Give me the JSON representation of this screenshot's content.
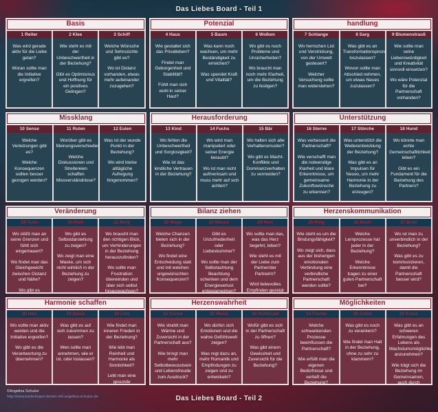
{
  "page": {
    "title_top": "Das Liebes Board - Teil 1",
    "title_bottom": "Das Liebes Board - Teil 2",
    "credit": "©Angelina Schulze",
    "credit_url": "http://www.kartenlegen-lernen-mit-angelina-schulze.de"
  },
  "colors": {
    "accent_red": "#8c2234",
    "section_header_bg": "#f4efee",
    "card_header_top_half": "#5e2230",
    "card_header_bottom_half": "#14384f",
    "card_body_top_half": "#0d2e3f",
    "card_body_bottom_half": "#601c2c",
    "text_light": "#f5f2ef",
    "url_blue": "#6f9fd8"
  },
  "bands": [
    {
      "theme": "blue",
      "sections": [
        {
          "title": "Basis",
          "cards": [
            {
              "title": "1 Reiter",
              "paragraphs": [
                "Was wird gerade aktiv für die Liebe getan?",
                "Woran sollte man die Initiative ergreifen?"
              ]
            },
            {
              "title": "2 Klee",
              "paragraphs": [
                "Wie steht es mit der Unbeschwertheit in der Beziehung?",
                "Gibt es Optimismus und Hoffnung für ein positives Gelingen?"
              ]
            },
            {
              "title": "3 Schiff",
              "paragraphs": [
                "Welche Wünsche und Sehnsüchte gibt es?",
                "Wo ist Distanz vorhanden, etwas mehr aufeinander zuzugehen?"
              ]
            }
          ]
        },
        {
          "title": "Potenzial",
          "cards": [
            {
              "title": "4 Haus",
              "paragraphs": [
                "Wie gestaltet sich das Privatleben?",
                "Findet man Geborgenheit und Stabilität?",
                "Fühlt man sich wohl in seiner Haut?"
              ]
            },
            {
              "title": "5 Baum",
              "paragraphs": [
                "Was kann noch wachsen, um mehr Beständigkeit zu erreichen?",
                "Was spendet Kraft und Vitalität?"
              ]
            },
            {
              "title": "6 Wolken",
              "paragraphs": [
                "Wo gibt es noch Probleme und Unsicherheiten?",
                "Wo braucht man noch mehr Klarheit, um die Beziehung zu festigen?"
              ]
            }
          ]
        },
        {
          "title": "handlung",
          "cards": [
            {
              "title": "7 Schlange",
              "paragraphs": [
                "Wo herrschen List und Verstrickung, von der Umwelt gesteuert?",
                "Welcher Versuchung sollte man widerstehen?"
              ]
            },
            {
              "title": "8 Sarg",
              "paragraphs": [
                "Was gibt es an Transformationsprozessen loszulassen?",
                "Wovon sollte man Abschied nehmen, um etwas Neues zuzulassen?"
              ]
            },
            {
              "title": "9 Blumenstrauß",
              "paragraphs": [
                "Wie sollte man seine Liebenswürdigkeit und Kreativität sinnvoll einsetzen?",
                "Wo wäre Potenzial für die Partnerschaft vorhanden?"
              ]
            }
          ]
        }
      ]
    },
    {
      "theme": "blue",
      "sections": [
        {
          "title": "Missklang",
          "cards": [
            {
              "title": "10 Sense",
              "paragraphs": [
                "Welche Verletzungen gibt es?",
                "Welche Konsequenzen sollten besser gezogen werden?"
              ]
            },
            {
              "title": "11 Ruten",
              "paragraphs": [
                "Worüber gibt es Meinungsverschiedenheiten?",
                "Welche Diskussionen und Streitereien schaffen Missverständnisse?"
              ]
            },
            {
              "title": "12 Eulen",
              "paragraphs": [
                "Was ist der wunde Punkt in der Beziehung?",
                "Wo wird kleine alltägliche Aufregung hingenommen?"
              ]
            }
          ]
        },
        {
          "title": "Herausforderung",
          "cards": [
            {
              "title": "13 Kind",
              "paragraphs": [
                "Wo fehlen die Unbeschwertheit und Sorglosigkeit?",
                "Wie ist das kindliche Vertrauen in der Beziehung?"
              ]
            },
            {
              "title": "14 Fuchs",
              "paragraphs": [
                "Wo wird man manipuliert oder seiner Energie beraubt?",
                "Wo ist man nicht aufmerksam und muss mehr auf sich achten?"
              ]
            },
            {
              "title": "15 Bär",
              "paragraphs": [
                "Wo halten sich alte Verhaltensmuster?",
                "Wo gibt es Macht-Konflikte und Dominanzverhalten zu vermeiden?"
              ]
            }
          ]
        },
        {
          "title": "Unterstützung",
          "cards": [
            {
              "title": "16 Sterne",
              "paragraphs": [
                "Was verbessert die Partnerschaft?",
                "Wie verschafft man die notwendige Klarheit und klare Erkenntnisse, um gemeinsame Zukunftswünsche zu erkennen?"
              ]
            },
            {
              "title": "17 Störche",
              "paragraphs": [
                "Was unterstützt die Weiterentwicklung der Beziehung?",
                "Was gibt es an Impulsen für Neues, um mehr Harmonie in der Beziehung zu erzeugen?"
              ]
            },
            {
              "title": "18 Hund",
              "paragraphs": [
                "Wo könnte man echte Gemeinschaftlichkeit leben?",
                "Gibt es ein Fundament für die Beziehung des Partners?"
              ]
            }
          ]
        }
      ]
    },
    {
      "theme": "red",
      "sections": [
        {
          "title": "Veränderung",
          "cards": [
            {
              "title": "19 Turm",
              "paragraphs": [
                "Wo stößt man an seine Grenzen und fühlt sich eingemauert?",
                "Wo findet man das Gleichgewicht zwischen Distanz und Nähe?",
                "Wo gibt es Selbstreflexion bezüglich der Partnerschaft zu betreiben?"
              ]
            },
            {
              "title": "20 Park",
              "paragraphs": [
                "Wo gibt es Selbstdarstellung zu zeigen?",
                "Wo zeigt man eine Maske, um sich nicht wirklich in der Beziehung zu zeigen?"
              ]
            },
            {
              "title": "21 Berg",
              "paragraphs": [
                "Wo braucht man den richtigen Blick, um Verhinderungen in der Beziehung herauszufinden?",
                "Wo sollte man Frustration überwinden und über sich selbst hinauswachsen?"
              ]
            }
          ]
        },
        {
          "title": "Bilanz ziehen",
          "cards": [
            {
              "title": "22 Wege",
              "paragraphs": [
                "Welche Chancen bieten sich in der Beziehung?",
                "Wo findet eine Entscheidung statt und mit welchen ungewünschten Konsequenzen?"
              ]
            },
            {
              "title": "23 Mäuse",
              "paragraphs": [
                "Gibt es Unzufriedenheit oder Liebeskummer?",
                "Wo sollte man der Selbstachtung Beachtung schenken und dem Energieverlust entgegenwirken?"
              ]
            },
            {
              "title": "24 Herz",
              "paragraphs": [
                "Wo sollte man das, was das Herz begehrt, leben?",
                "Wie steht es mit der Liebe zum Partner/der Partnerin?",
                "Wird liebevolles Empfinden gezeigt und gelebt?"
              ]
            }
          ]
        },
        {
          "title": "Herzenskommunikation",
          "cards": [
            {
              "title": "25 Ring",
              "paragraphs": [
                "Wie steht es um die Bindungsfähigkeit?",
                "Wo zeigt sich, dass aus der bisherigen emotionalen Verbindung eine verbindliche Partnerschaft werden sollte?"
              ]
            },
            {
              "title": "26 Buch",
              "paragraphs": [
                "Welche Lernprozesse hat jeder in der Beziehung?",
                "Welche Erkenntnisse tragen zu einer guten Partnerschaft bei?"
              ]
            },
            {
              "title": "27 Brief",
              "paragraphs": [
                "Wo ist man zu unverbindlich in der Beziehung?",
                "Was gibt es zu kommunizieren, damit die Partnerschaft besser wird?"
              ]
            }
          ]
        }
      ]
    },
    {
      "theme": "red",
      "sections": [
        {
          "title": "Harmonie schaffen",
          "cards": [
            {
              "title": "28 Herr",
              "paragraphs": [
                "Wo sollte man aktiv werden und die Initiative ergreifen?",
                "Wo gibt es die Verantwortung zu übernehmen?"
              ]
            },
            {
              "title": "29 Dame",
              "paragraphs": [
                "Was gibt es auf sich zukommen zu lassen?",
                "Wen sollte man annehmen, wie er ist, oder loslassen?"
              ]
            },
            {
              "title": "30 Lilie",
              "paragraphs": [
                "Wie findet man inneren Frieden in der Beziehung?",
                "Wie lebt man Reinheit und Harmonie als Sinnlichkeit?",
                "Lebt man eine gesunde Sexualität?"
              ]
            }
          ]
        },
        {
          "title": "Herzenswahrheit",
          "cards": [
            {
              "title": "31 Sonne",
              "paragraphs": [
                "Wie strahlt man Wärme und Zuversicht in der Partnerschaft aus?",
                "Wie bringt man mehr Selbstbewusstsein und Lebensfreude zum Ausdruck?"
              ]
            },
            {
              "title": "32 Mond",
              "paragraphs": [
                "Wo dürfen sich Emotionen und die wahre Gefühlswelt zeigen?",
                "Was regt dazu an, mehr Romantik und Empfindungen zu zeigen und zu entwickeln?"
              ]
            },
            {
              "title": "33 Schlüssel",
              "paragraphs": [
                "Wofür gibt es sich in der Partnerschaft zu öffnen?",
                "Was gibt einem Gewissheit und Zuversicht für die Beziehung?"
              ]
            }
          ]
        },
        {
          "title": "Möglichkeiten",
          "cards": [
            {
              "title": "34 Fische",
              "paragraphs": [
                "Welche schwankenden Prozesse beeinflussen die Partnerschaft?",
                "Wie erfüllt man die eigenen Bedürfnisse und vertieft die Beziehung?"
              ]
            },
            {
              "title": "35 Anker",
              "paragraphs": [
                "Was gibt es noch zu verankern?",
                "Wie findet man Halt in der Beziehung, ohne zu sehr zu klammern?"
              ]
            },
            {
              "title": "36 Kreuz",
              "paragraphs": [
                "Was gibt es an schweren Erfahrungen des Lebens als Wachstumsmöglichkeiten anzunehmen?",
                "Wie trägt sich die Beziehung im Gemeinsamen, auch durch unabwendbare Erfahrungen?"
              ]
            }
          ]
        }
      ]
    }
  ]
}
